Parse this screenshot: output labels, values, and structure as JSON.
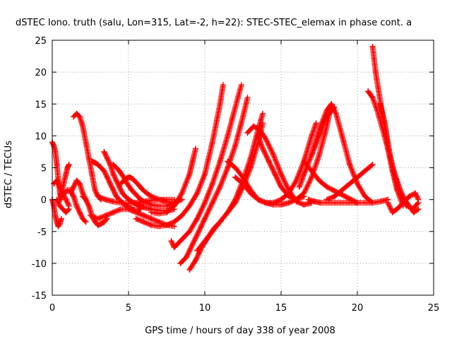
{
  "chart_data": {
    "type": "scatter",
    "title": "dSTEC Iono. truth (salu, Lon=315, Lat=-2, h=22): STEC-STEC_elemax in phase cont. a",
    "xlabel": "GPS time / hours of day 338 of year 2008",
    "ylabel": "dSTEC  / TECUs",
    "xlim": [
      0,
      25
    ],
    "ylim": [
      -15,
      25
    ],
    "xticks": [
      0,
      5,
      10,
      15,
      20,
      25
    ],
    "yticks": [
      -15,
      -10,
      -5,
      0,
      5,
      10,
      15,
      20,
      25
    ],
    "grid": true,
    "marker": "+",
    "color": "#ff0000",
    "series": [
      {
        "x": [
          0.0,
          0.1,
          0.2,
          0.3,
          0.4,
          0.5,
          0.6
        ],
        "y": [
          9.0,
          8.5,
          7.5,
          5.5,
          3.0,
          1.0,
          0.0
        ]
      },
      {
        "x": [
          0.0,
          0.1,
          0.2,
          0.3,
          0.4,
          0.5,
          0.6
        ],
        "y": [
          0.0,
          -1.0,
          -2.5,
          -3.5,
          -4.2,
          -3.8,
          -3.0
        ]
      },
      {
        "x": [
          0.1,
          0.3,
          0.5,
          0.7,
          0.9,
          1.1
        ],
        "y": [
          2.5,
          3.0,
          2.0,
          1.0,
          0.0,
          -1.0
        ]
      },
      {
        "x": [
          0.5,
          0.7,
          0.9,
          1.0,
          1.1
        ],
        "y": [
          0.0,
          2.0,
          4.0,
          5.0,
          5.5
        ]
      },
      {
        "x": [
          0.3,
          0.5,
          0.7,
          0.9,
          1.1
        ],
        "y": [
          0.0,
          -1.0,
          -1.5,
          -2.0,
          -1.5
        ]
      },
      {
        "x": [
          0.6,
          0.8,
          1.0,
          1.2,
          1.4,
          1.6,
          1.8,
          2.0,
          2.2
        ],
        "y": [
          0.5,
          1.0,
          1.5,
          1.5,
          0.5,
          -1.0,
          -2.0,
          -3.0,
          -3.5
        ]
      },
      {
        "x": [
          1.2,
          1.4,
          1.6,
          1.8,
          2.0,
          2.2
        ],
        "y": [
          1.0,
          2.0,
          3.0,
          2.5,
          1.0,
          0.0
        ]
      },
      {
        "x": [
          1.4,
          1.6,
          1.8,
          2.0,
          2.2,
          2.4,
          2.6,
          2.8,
          3.0,
          3.2
        ],
        "y": [
          13.0,
          13.5,
          13.0,
          11.5,
          9.0,
          6.5,
          4.0,
          1.5,
          0.5,
          0.0
        ]
      },
      {
        "x": [
          2.0,
          2.2,
          2.4,
          2.6,
          2.8,
          3.0,
          3.2,
          3.4,
          3.6
        ],
        "y": [
          0.5,
          0.0,
          -1.0,
          -2.5,
          -3.5,
          -4.0,
          -3.8,
          -3.5,
          -3.0
        ]
      },
      {
        "x": [
          2.6,
          2.8,
          3.0,
          3.2,
          3.4,
          3.6,
          3.8,
          4.0,
          4.2,
          4.4,
          4.6,
          4.8,
          5.0,
          5.2,
          5.4,
          5.6,
          5.8
        ],
        "y": [
          6.0,
          5.8,
          5.5,
          5.0,
          4.5,
          3.5,
          2.5,
          1.5,
          0.5,
          0.0,
          -0.5,
          -1.0,
          -1.2,
          -1.5,
          -1.6,
          -1.6,
          -1.5
        ]
      },
      {
        "x": [
          3.4,
          3.6,
          3.8,
          4.0,
          4.2,
          4.4,
          4.6,
          4.8,
          5.0,
          5.2,
          5.4,
          5.6,
          5.8,
          6.0,
          6.5,
          7.0,
          7.5,
          8.0
        ],
        "y": [
          7.5,
          6.5,
          5.5,
          4.0,
          3.0,
          2.0,
          1.0,
          0.5,
          0.0,
          -0.3,
          -0.6,
          -0.8,
          -1.0,
          -1.2,
          -1.5,
          -1.7,
          -1.8,
          -1.5
        ]
      },
      {
        "x": [
          4.0,
          4.2,
          4.4,
          4.6,
          4.8,
          5.0,
          5.2,
          5.4,
          5.6,
          5.8,
          6.0,
          6.5,
          7.0,
          7.5,
          8.0,
          8.5
        ],
        "y": [
          5.5,
          5.0,
          4.5,
          3.8,
          3.0,
          2.2,
          1.5,
          1.0,
          0.5,
          0.0,
          -0.3,
          -0.8,
          -1.0,
          -1.0,
          -0.5,
          0.0
        ]
      },
      {
        "x": [
          4.5,
          4.7,
          4.9,
          5.1,
          5.3,
          5.5,
          5.7,
          5.9,
          6.2,
          6.5,
          7.0,
          7.5,
          8.0,
          8.3
        ],
        "y": [
          2.5,
          3.0,
          3.4,
          3.5,
          3.2,
          2.7,
          2.2,
          1.6,
          1.0,
          0.5,
          0.0,
          -0.3,
          -0.5,
          0.0
        ]
      },
      {
        "x": [
          2.5,
          3.0,
          3.5,
          4.0,
          4.5,
          5.0,
          5.5,
          6.0,
          6.5,
          7.0,
          7.5,
          8.0
        ],
        "y": [
          -2.5,
          -3.0,
          -2.5,
          -2.0,
          -1.5,
          -1.5,
          -2.0,
          -2.5,
          -3.0,
          -3.5,
          -4.0,
          -4.2
        ]
      },
      {
        "x": [
          3.0,
          3.5,
          4.0,
          4.5,
          5.0,
          5.5,
          6.0,
          6.5,
          7.0,
          7.5,
          8.0
        ],
        "y": [
          0.5,
          0.0,
          -0.3,
          -0.5,
          -0.6,
          -0.5,
          -0.3,
          -0.1,
          0.0,
          0.0,
          0.0
        ]
      },
      {
        "x": [
          5.5,
          6.0,
          6.5,
          7.0,
          7.5,
          8.0,
          8.5,
          9.0,
          9.5,
          10.0,
          10.5,
          11.0,
          11.2
        ],
        "y": [
          -3.0,
          -3.5,
          -4.0,
          -4.2,
          -4.0,
          -3.5,
          -2.5,
          -1.0,
          1.0,
          4.0,
          9.0,
          15.0,
          18.0
        ]
      },
      {
        "x": [
          6.5,
          7.0,
          7.5,
          8.0,
          8.5,
          9.0,
          9.2,
          9.4
        ],
        "y": [
          -2.0,
          -2.2,
          -2.0,
          -1.0,
          1.0,
          4.0,
          6.0,
          8.0
        ]
      },
      {
        "x": [
          7.8,
          8.0,
          8.2,
          8.6,
          9.0,
          9.5,
          10.0,
          10.5,
          11.0,
          11.5,
          12.0,
          12.4
        ],
        "y": [
          -6.5,
          -7.5,
          -7.0,
          -6.0,
          -5.0,
          -3.0,
          -0.5,
          2.5,
          6.0,
          10.0,
          14.5,
          18.0
        ]
      },
      {
        "x": [
          8.4,
          8.8,
          9.2,
          9.6,
          10.0,
          10.5,
          11.0,
          11.5,
          12.0,
          12.5,
          12.8
        ],
        "y": [
          -10.0,
          -9.0,
          -7.0,
          -5.0,
          -3.0,
          -0.5,
          2.0,
          5.0,
          8.5,
          13.0,
          16.0
        ]
      },
      {
        "x": [
          9.0,
          9.4,
          9.8,
          10.2,
          10.6,
          11.0,
          11.5,
          12.0,
          12.5,
          13.0,
          13.5,
          13.8
        ],
        "y": [
          -11.0,
          -9.5,
          -7.5,
          -6.0,
          -4.5,
          -3.5,
          -2.0,
          0.0,
          3.0,
          6.5,
          11.0,
          13.5
        ]
      },
      {
        "x": [
          9.5,
          10.0,
          10.5,
          11.0,
          11.5,
          12.0,
          12.5,
          13.0,
          13.5,
          13.8
        ],
        "y": [
          -8.0,
          -6.5,
          -5.0,
          -3.5,
          -2.0,
          -0.5,
          2.0,
          5.0,
          9.0,
          12.0
        ]
      },
      {
        "x": [
          11.5,
          12.0,
          12.5,
          13.0,
          13.5,
          14.0,
          14.5,
          15.0,
          15.5,
          16.0,
          16.5
        ],
        "y": [
          6.0,
          5.0,
          3.5,
          1.5,
          0.0,
          -0.5,
          -0.8,
          -0.8,
          -0.5,
          0.0,
          0.5
        ]
      },
      {
        "x": [
          12.0,
          12.5,
          13.0,
          13.5,
          14.0,
          14.5,
          15.0,
          15.5,
          16.0,
          16.5,
          17.0,
          17.3
        ],
        "y": [
          3.5,
          2.5,
          1.0,
          0.0,
          -0.5,
          -0.5,
          0.0,
          1.0,
          3.0,
          6.0,
          10.0,
          12.0
        ]
      },
      {
        "x": [
          12.8,
          13.2,
          13.6,
          14.0,
          14.5,
          15.0,
          15.5,
          16.0,
          16.5,
          17.0
        ],
        "y": [
          10.5,
          11.5,
          11.0,
          9.5,
          7.0,
          4.0,
          1.5,
          -0.3,
          -0.8,
          -0.5
        ]
      },
      {
        "x": [
          13.5,
          13.8,
          14.2,
          14.6,
          15.0,
          15.5,
          16.0,
          16.5,
          17.0,
          17.5,
          18.0,
          18.3
        ],
        "y": [
          10.0,
          8.0,
          6.0,
          4.0,
          2.0,
          0.5,
          0.0,
          1.0,
          3.5,
          7.0,
          11.5,
          15.0
        ]
      },
      {
        "x": [
          16.2,
          16.5,
          17.0,
          17.5,
          18.0,
          18.5
        ],
        "y": [
          2.0,
          4.0,
          7.0,
          10.0,
          13.0,
          14.5
        ]
      },
      {
        "x": [
          16.5,
          17.0,
          17.5,
          18.0,
          18.4,
          18.8,
          19.2,
          19.6,
          20.0,
          20.5,
          21.0,
          21.5,
          22.0
        ],
        "y": [
          6.0,
          4.5,
          3.0,
          2.0,
          1.5,
          1.0,
          0.5,
          0.0,
          -0.5,
          -0.5,
          -0.5,
          -0.3,
          0.0
        ]
      },
      {
        "x": [
          16.8,
          17.2,
          17.6,
          18.0,
          18.5,
          19.0,
          19.5,
          20.0
        ],
        "y": [
          0.0,
          -0.3,
          -0.5,
          -0.5,
          -0.5,
          -0.5,
          -0.5,
          -0.5
        ]
      },
      {
        "x": [
          17.0,
          17.5,
          18.0,
          18.3,
          18.6,
          19.0,
          19.5,
          20.0,
          20.5,
          21.0
        ],
        "y": [
          7.0,
          11.0,
          14.0,
          15.0,
          13.5,
          10.0,
          5.5,
          2.5,
          0.5,
          -0.5
        ]
      },
      {
        "x": [
          18.0,
          18.5,
          19.0,
          19.5,
          20.0,
          20.5,
          21.0
        ],
        "y": [
          0.0,
          0.5,
          1.5,
          2.5,
          3.5,
          4.5,
          5.5
        ]
      },
      {
        "x": [
          20.7,
          21.0,
          21.3,
          21.6,
          22.0,
          22.4,
          22.8,
          23.2
        ],
        "y": [
          17.0,
          16.0,
          14.0,
          11.5,
          8.0,
          4.5,
          1.5,
          -1.0
        ]
      },
      {
        "x": [
          21.0,
          21.2,
          21.4,
          21.6,
          21.8,
          22.0,
          22.3,
          22.6,
          23.0
        ],
        "y": [
          24.0,
          20.0,
          17.0,
          14.0,
          11.5,
          8.0,
          4.5,
          1.5,
          -1.0
        ]
      },
      {
        "x": [
          21.5,
          21.8,
          22.0,
          22.3,
          22.6,
          23.0,
          23.3,
          23.6,
          24.0
        ],
        "y": [
          15.0,
          12.0,
          9.0,
          5.0,
          2.0,
          0.0,
          -1.0,
          -1.5,
          -0.5
        ]
      },
      {
        "x": [
          22.0,
          22.3,
          22.6,
          23.0,
          23.4,
          23.8,
          24.0
        ],
        "y": [
          -0.5,
          -2.0,
          -1.5,
          -0.5,
          0.5,
          1.0,
          0.0
        ]
      },
      {
        "x": [
          22.5,
          22.8,
          23.1,
          23.4,
          23.7,
          24.0
        ],
        "y": [
          3.5,
          1.5,
          0.0,
          -1.0,
          -2.0,
          -1.5
        ]
      }
    ]
  }
}
